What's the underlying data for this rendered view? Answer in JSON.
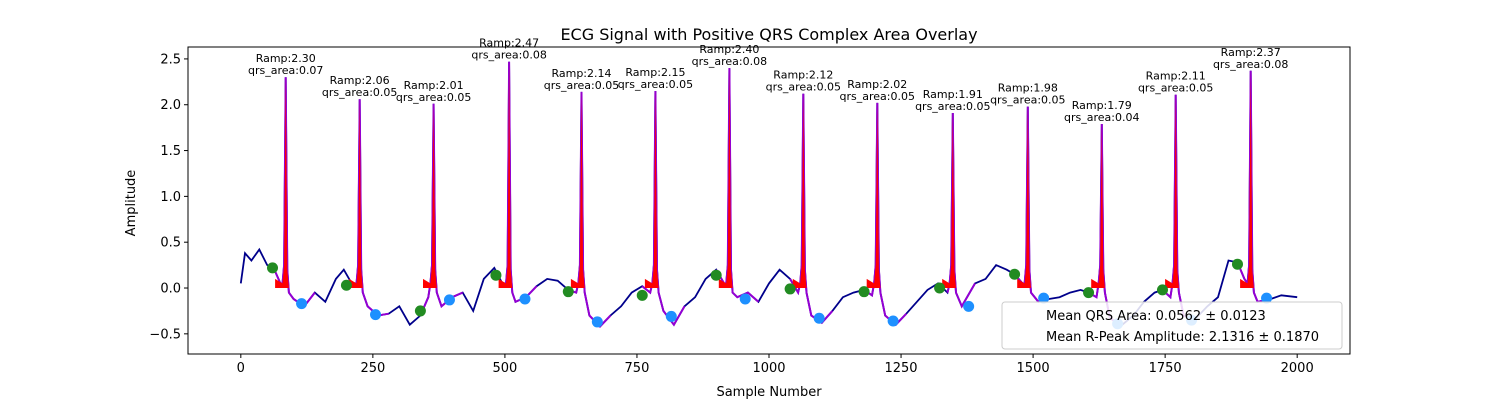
{
  "chart_data": {
    "type": "line",
    "title": "ECG Signal with Positive QRS Complex Area Overlay",
    "xlabel": "Sample Number",
    "ylabel": "Amplitude",
    "xlim": [
      -100,
      2100
    ],
    "ylim": [
      -0.72,
      2.63
    ],
    "xticks": [
      0,
      250,
      500,
      750,
      1000,
      1250,
      1500,
      1750,
      2000
    ],
    "yticks": [
      -0.5,
      0.0,
      0.5,
      1.0,
      1.5,
      2.0,
      2.5
    ],
    "xtick_labels": [
      "0",
      "250",
      "500",
      "750",
      "1000",
      "1250",
      "1500",
      "1750",
      "2000"
    ],
    "ytick_labels": [
      "−0.5",
      "0.0",
      "0.5",
      "1.0",
      "1.5",
      "2.0",
      "2.5"
    ],
    "grid": false,
    "legend_position": "lower-right",
    "legend_entries": [
      "Mean QRS Area: 0.0562 ± 0.0123",
      "Mean R-Peak Amplitude: 2.1316 ± 0.1870"
    ],
    "colors": {
      "ecg": "#00008b",
      "overlay": "#9400d3",
      "qrs_fill": "#ff0000",
      "onset_marker": "#228b22",
      "offset_marker": "#1e90ff"
    },
    "beats": [
      {
        "r": 85,
        "ramp": 2.3,
        "area": "0.07",
        "label_ramp": "Ramp:2.30",
        "label_area": "qrs_area:0.07",
        "onset_x": 60,
        "onset_y": 0.22,
        "offset_x": 115,
        "offset_y": -0.17
      },
      {
        "r": 225,
        "ramp": 2.06,
        "area": "0.05",
        "label_ramp": "Ramp:2.06",
        "label_area": "qrs_area:0.05",
        "onset_x": 200,
        "onset_y": 0.03,
        "offset_x": 255,
        "offset_y": -0.29
      },
      {
        "r": 365,
        "ramp": 2.01,
        "area": "0.05",
        "label_ramp": "Ramp:2.01",
        "label_area": "qrs_area:0.05",
        "onset_x": 340,
        "onset_y": -0.25,
        "offset_x": 395,
        "offset_y": -0.13
      },
      {
        "r": 508,
        "ramp": 2.47,
        "area": "0.08",
        "label_ramp": "Ramp:2.47",
        "label_area": "qrs_area:0.08",
        "onset_x": 483,
        "onset_y": 0.14,
        "offset_x": 538,
        "offset_y": -0.12
      },
      {
        "r": 645,
        "ramp": 2.14,
        "area": "0.05",
        "label_ramp": "Ramp:2.14",
        "label_area": "qrs_area:0.05",
        "onset_x": 620,
        "onset_y": -0.04,
        "offset_x": 675,
        "offset_y": -0.37
      },
      {
        "r": 785,
        "ramp": 2.15,
        "area": "0.05",
        "label_ramp": "Ramp:2.15",
        "label_area": "qrs_area:0.05",
        "onset_x": 760,
        "onset_y": -0.08,
        "offset_x": 815,
        "offset_y": -0.31
      },
      {
        "r": 925,
        "ramp": 2.4,
        "area": "0.08",
        "label_ramp": "Ramp:2.40",
        "label_area": "qrs_area:0.08",
        "onset_x": 900,
        "onset_y": 0.14,
        "offset_x": 955,
        "offset_y": -0.12
      },
      {
        "r": 1065,
        "ramp": 2.12,
        "area": "0.05",
        "label_ramp": "Ramp:2.12",
        "label_area": "qrs_area:0.05",
        "onset_x": 1040,
        "onset_y": -0.01,
        "offset_x": 1095,
        "offset_y": -0.33
      },
      {
        "r": 1205,
        "ramp": 2.02,
        "area": "0.05",
        "label_ramp": "Ramp:2.02",
        "label_area": "qrs_area:0.05",
        "onset_x": 1180,
        "onset_y": -0.04,
        "offset_x": 1235,
        "offset_y": -0.36
      },
      {
        "r": 1348,
        "ramp": 1.91,
        "area": "0.05",
        "label_ramp": "Ramp:1.91",
        "label_area": "qrs_area:0.05",
        "onset_x": 1323,
        "onset_y": 0.0,
        "offset_x": 1378,
        "offset_y": -0.2
      },
      {
        "r": 1490,
        "ramp": 1.98,
        "area": "0.05",
        "label_ramp": "Ramp:1.98",
        "label_area": "qrs_area:0.05",
        "onset_x": 1465,
        "onset_y": 0.15,
        "offset_x": 1520,
        "offset_y": -0.11
      },
      {
        "r": 1630,
        "ramp": 1.79,
        "area": "0.04",
        "label_ramp": "Ramp:1.79",
        "label_area": "qrs_area:0.04",
        "onset_x": 1605,
        "onset_y": -0.05,
        "offset_x": 1660,
        "offset_y": -0.39
      },
      {
        "r": 1770,
        "ramp": 2.11,
        "area": "0.05",
        "label_ramp": "Ramp:2.11",
        "label_area": "qrs_area:0.05",
        "onset_x": 1745,
        "onset_y": -0.02,
        "offset_x": 1800,
        "offset_y": -0.35
      },
      {
        "r": 1912,
        "ramp": 2.37,
        "area": "0.08",
        "label_ramp": "Ramp:2.37",
        "label_area": "qrs_area:0.08",
        "onset_x": 1887,
        "onset_y": 0.26,
        "offset_x": 1942,
        "offset_y": -0.11
      }
    ],
    "ecg_baseline": [
      [
        0,
        0.05
      ],
      [
        8,
        0.38
      ],
      [
        20,
        0.3
      ],
      [
        35,
        0.42
      ],
      [
        50,
        0.25
      ],
      [
        62,
        0.22
      ],
      [
        75,
        0.05
      ],
      [
        100,
        -0.12
      ],
      [
        120,
        -0.2
      ],
      [
        140,
        -0.05
      ],
      [
        160,
        -0.15
      ],
      [
        180,
        0.1
      ],
      [
        195,
        0.2
      ],
      [
        210,
        0.05
      ],
      [
        240,
        -0.2
      ],
      [
        260,
        -0.3
      ],
      [
        280,
        -0.28
      ],
      [
        300,
        -0.2
      ],
      [
        320,
        -0.4
      ],
      [
        340,
        -0.3
      ],
      [
        355,
        -0.1
      ],
      [
        380,
        -0.2
      ],
      [
        400,
        -0.1
      ],
      [
        420,
        -0.05
      ],
      [
        440,
        -0.25
      ],
      [
        460,
        0.1
      ],
      [
        480,
        0.22
      ],
      [
        495,
        0.05
      ],
      [
        520,
        -0.15
      ],
      [
        540,
        -0.1
      ],
      [
        560,
        0.02
      ],
      [
        580,
        0.1
      ],
      [
        600,
        0.08
      ],
      [
        620,
        -0.02
      ],
      [
        635,
        -0.05
      ],
      [
        660,
        -0.3
      ],
      [
        680,
        -0.42
      ],
      [
        700,
        -0.3
      ],
      [
        720,
        -0.2
      ],
      [
        740,
        -0.05
      ],
      [
        760,
        0.02
      ],
      [
        775,
        -0.05
      ],
      [
        800,
        -0.25
      ],
      [
        820,
        -0.4
      ],
      [
        840,
        -0.2
      ],
      [
        860,
        -0.1
      ],
      [
        880,
        0.1
      ],
      [
        900,
        0.2
      ],
      [
        915,
        0.05
      ],
      [
        940,
        -0.1
      ],
      [
        960,
        -0.05
      ],
      [
        980,
        -0.15
      ],
      [
        1000,
        0.05
      ],
      [
        1020,
        0.2
      ],
      [
        1040,
        0.1
      ],
      [
        1055,
        -0.05
      ],
      [
        1080,
        -0.3
      ],
      [
        1100,
        -0.38
      ],
      [
        1120,
        -0.25
      ],
      [
        1140,
        -0.1
      ],
      [
        1160,
        -0.05
      ],
      [
        1180,
        -0.02
      ],
      [
        1195,
        -0.08
      ],
      [
        1220,
        -0.3
      ],
      [
        1240,
        -0.4
      ],
      [
        1260,
        -0.28
      ],
      [
        1280,
        -0.15
      ],
      [
        1300,
        -0.02
      ],
      [
        1320,
        0.05
      ],
      [
        1338,
        -0.05
      ],
      [
        1365,
        -0.2
      ],
      [
        1390,
        0.05
      ],
      [
        1410,
        0.1
      ],
      [
        1430,
        0.25
      ],
      [
        1450,
        0.2
      ],
      [
        1465,
        0.15
      ],
      [
        1480,
        0.05
      ],
      [
        1510,
        -0.15
      ],
      [
        1530,
        -0.12
      ],
      [
        1550,
        -0.1
      ],
      [
        1570,
        -0.05
      ],
      [
        1590,
        -0.02
      ],
      [
        1605,
        -0.05
      ],
      [
        1620,
        -0.1
      ],
      [
        1645,
        -0.32
      ],
      [
        1665,
        -0.42
      ],
      [
        1690,
        -0.3
      ],
      [
        1710,
        -0.15
      ],
      [
        1730,
        -0.05
      ],
      [
        1745,
        -0.02
      ],
      [
        1760,
        -0.1
      ],
      [
        1785,
        -0.3
      ],
      [
        1805,
        -0.35
      ],
      [
        1830,
        -0.2
      ],
      [
        1850,
        -0.1
      ],
      [
        1870,
        0.3
      ],
      [
        1887,
        0.28
      ],
      [
        1900,
        0.1
      ],
      [
        1925,
        -0.15
      ],
      [
        1950,
        -0.12
      ],
      [
        1970,
        -0.08
      ],
      [
        2000,
        -0.1
      ]
    ]
  }
}
